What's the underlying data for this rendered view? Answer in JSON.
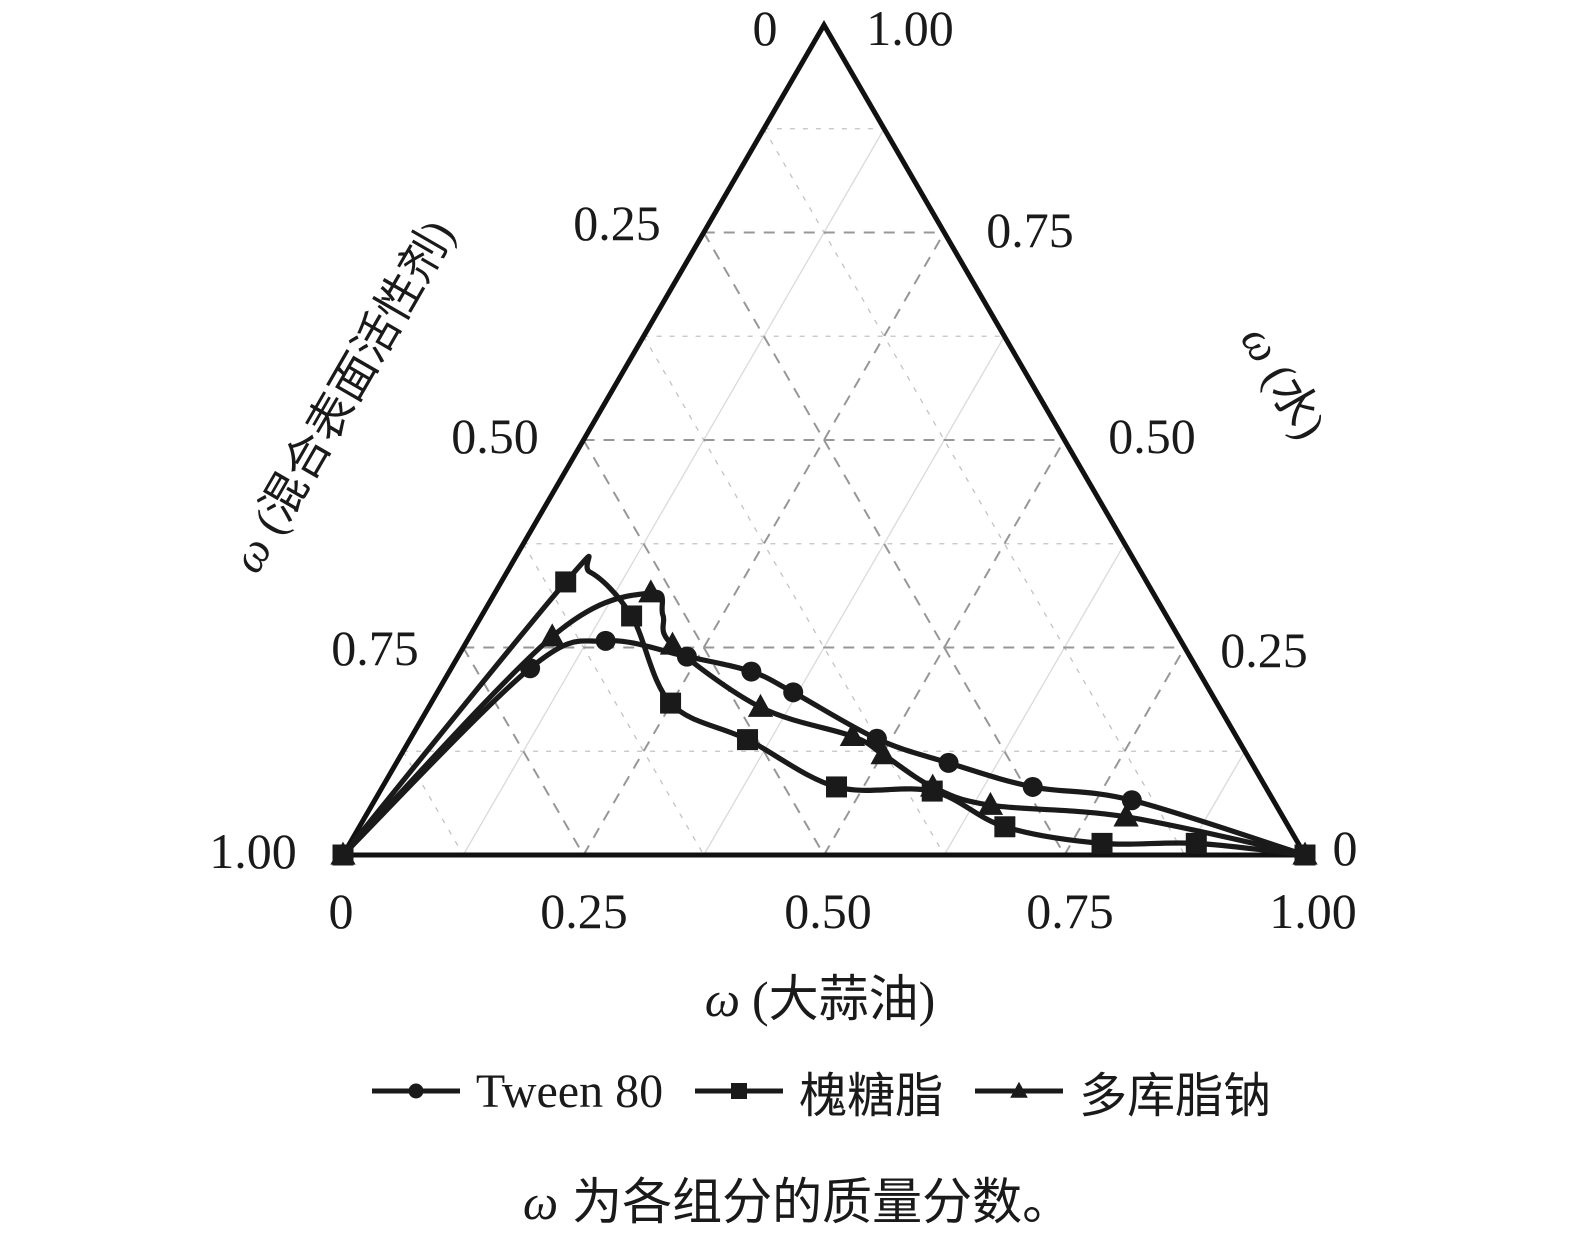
{
  "colors": {
    "line": "#1a1a1a",
    "grid_major": "#979797",
    "grid_minor": "#c3c3c3",
    "background": "#ffffff"
  },
  "chart_data": {
    "type": "line",
    "subtype": "ternary-phase-diagram",
    "grid": {
      "major_interval": 0.25,
      "minor_interval": 0.125,
      "grid_on": true
    },
    "axes": {
      "bottom": {
        "symbol": "ω",
        "name": "(大蒜油)",
        "ticks": [
          "0",
          "0.25",
          "0.50",
          "0.75",
          "1.00"
        ],
        "range": [
          0,
          1
        ]
      },
      "left": {
        "symbol": "ω",
        "name": "(混合表面活性剂)",
        "ticks": [
          "0",
          "0.25",
          "0.50",
          "0.75",
          "1.00"
        ],
        "range": [
          0,
          1
        ]
      },
      "right": {
        "symbol": "ω",
        "name": "(水)",
        "ticks": [
          "1.00",
          "0.75",
          "0.50",
          "0.25",
          "0"
        ],
        "range": [
          1,
          0
        ]
      }
    },
    "legend_position": "bottom",
    "series": [
      {
        "name": "Tween 80",
        "marker": "circle",
        "points_oil_water": [
          [
            0,
            0
          ],
          [
            0.082,
            0.225
          ],
          [
            0.144,
            0.258
          ],
          [
            0.238,
            0.239
          ],
          [
            0.314,
            0.221
          ],
          [
            0.37,
            0.196
          ],
          [
            0.485,
            0.14
          ],
          [
            0.574,
            0.111
          ],
          [
            0.676,
            0.082
          ],
          [
            0.787,
            0.066
          ],
          [
            1,
            0
          ]
        ]
      },
      {
        "name": "槐糖脂",
        "marker": "square",
        "points_oil_water": [
          [
            0,
            0
          ],
          [
            0.067,
            0.329
          ],
          [
            0.086,
            0.341,
            false
          ],
          [
            0.156,
            0.288
          ],
          [
            0.249,
            0.183
          ],
          [
            0.351,
            0.139
          ],
          [
            0.472,
            0.082
          ],
          [
            0.574,
            0.077
          ],
          [
            0.671,
            0.034
          ],
          [
            0.782,
            0.014
          ],
          [
            0.88,
            0.014
          ],
          [
            1,
            0
          ]
        ]
      },
      {
        "name": "多库脂钠",
        "marker": "triangle",
        "points_oil_water": [
          [
            0,
            0
          ],
          [
            0.086,
            0.263
          ],
          [
            0.162,
            0.316
          ],
          [
            0.188,
            0.289,
            false
          ],
          [
            0.216,
            0.253
          ],
          [
            0.345,
            0.178
          ],
          [
            0.458,
            0.143
          ],
          [
            0.501,
            0.121
          ],
          [
            0.572,
            0.082
          ],
          [
            0.643,
            0.06
          ],
          [
            0.791,
            0.046
          ],
          [
            1,
            0
          ]
        ]
      }
    ],
    "caption": {
      "symbol": "ω",
      "text": "为各组分的质量分数。"
    }
  }
}
